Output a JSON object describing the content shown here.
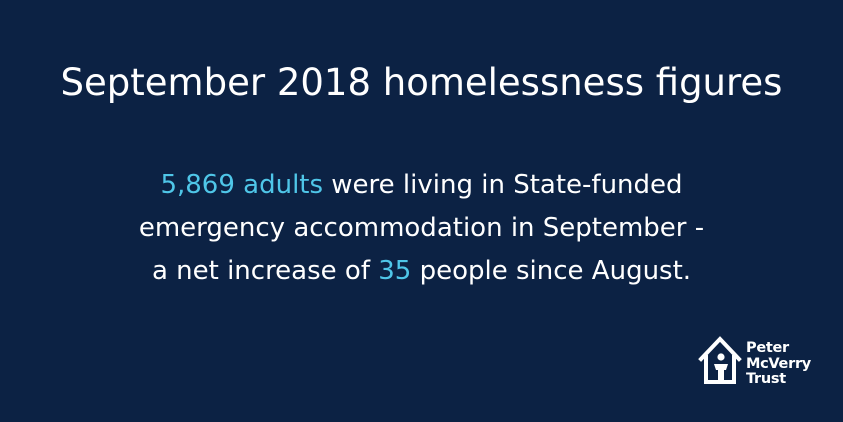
{
  "headline": "September 2018 homelessness figures",
  "body": {
    "stat_adults": "5,869 adults",
    "line1_rest": " were living in State-funded",
    "line2": "emergency accommodation in September -",
    "line3_start": "a net increase of ",
    "stat_increase": "35",
    "line3_end": " people since August."
  },
  "logo": {
    "icon": "house-person-icon",
    "name_line1": "Peter",
    "name_line2": "McVerry",
    "name_line3": "Trust"
  },
  "colors": {
    "background": "#0c2244",
    "text": "#ffffff",
    "highlight": "#4fc6e8"
  }
}
